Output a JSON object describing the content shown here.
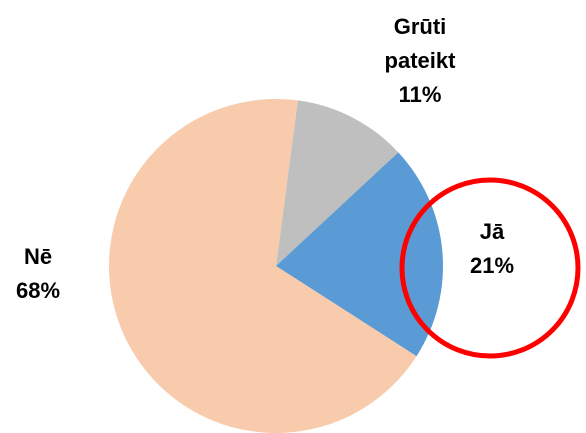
{
  "chart_data": {
    "type": "pie",
    "categories": [
      "Grūti pateikt",
      "Jā",
      "Nē"
    ],
    "values": [
      11,
      21,
      68
    ],
    "value_labels": [
      "11%",
      "21%",
      "68%"
    ],
    "colors": [
      "#bfbfbf",
      "#5b9bd5",
      "#f8cbad"
    ]
  }
}
